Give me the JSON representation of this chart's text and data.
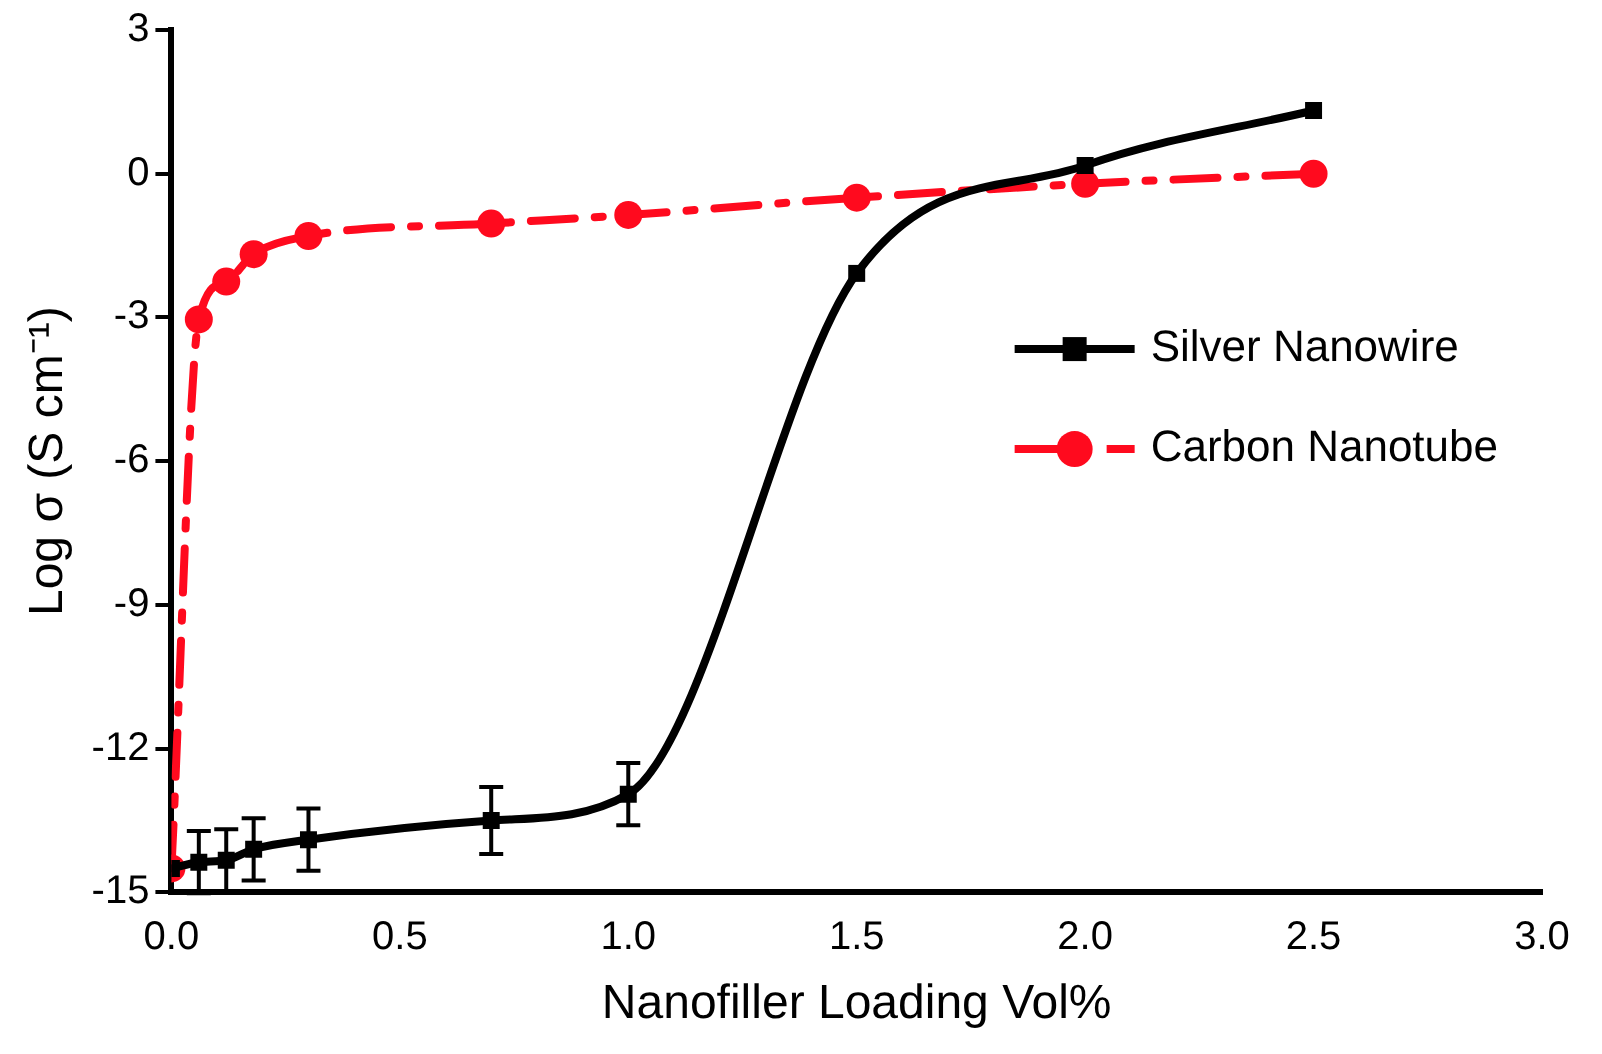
{
  "chart_data": {
    "type": "line",
    "xlabel": "Nanofiller Loading Vol%",
    "ylabel": "Log σ (S cm⁻¹)",
    "xlim": [
      0,
      3
    ],
    "xticks": [
      {
        "value": 0,
        "label": "0.0"
      },
      {
        "value": 0.5,
        "label": "0.5"
      },
      {
        "value": 1,
        "label": "1.0"
      },
      {
        "value": 1.5,
        "label": "1.5"
      },
      {
        "value": 2,
        "label": "2.0"
      },
      {
        "value": 2.5,
        "label": "2.5"
      },
      {
        "value": 3,
        "label": "3.0"
      }
    ],
    "ylim": [
      -15,
      3
    ],
    "yticks": [
      3,
      0,
      -3,
      -6,
      -9,
      -12,
      -15
    ],
    "grid": false,
    "legend": "right",
    "series": [
      {
        "name": "Silver Nanowire",
        "color": "#000000",
        "marker": "square",
        "line_style": "solid",
        "x": [
          0,
          0.06,
          0.12,
          0.18,
          0.3,
          0.7,
          1.0,
          1.5,
          2.0,
          2.5
        ],
        "values": [
          -14.5,
          -14.37,
          -14.33,
          -14.1,
          -13.9,
          -13.5,
          -12.95,
          -2.08,
          0.17,
          1.32
        ],
        "errors": [
          null,
          0.65,
          0.65,
          0.65,
          0.65,
          0.7,
          0.65,
          null,
          null,
          null
        ]
      },
      {
        "name": "Carbon Nanotube",
        "color": "#ff0a1e",
        "marker": "circle",
        "line_style": "dashed",
        "x": [
          0,
          0.06,
          0.12,
          0.18,
          0.3,
          0.7,
          1.0,
          1.5,
          2.0,
          2.5
        ],
        "values": [
          -14.5,
          -3.04,
          -2.25,
          -1.68,
          -1.3,
          -1.04,
          -0.86,
          -0.5,
          -0.21,
          0
        ]
      }
    ]
  }
}
